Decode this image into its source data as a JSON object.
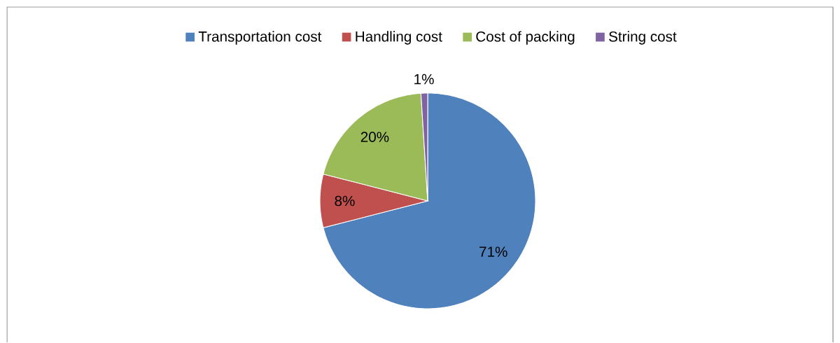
{
  "chart_data": {
    "type": "pie",
    "categories": [
      "Transportation cost",
      "Handling cost",
      "Cost of packing",
      "String cost"
    ],
    "values": [
      71,
      8,
      20,
      1
    ],
    "colors": [
      "#4f81bd",
      "#c0504d",
      "#9bbb59",
      "#8064a2"
    ],
    "value_labels": [
      "71%",
      "8%",
      "20%",
      "1%"
    ],
    "legend": "top"
  }
}
